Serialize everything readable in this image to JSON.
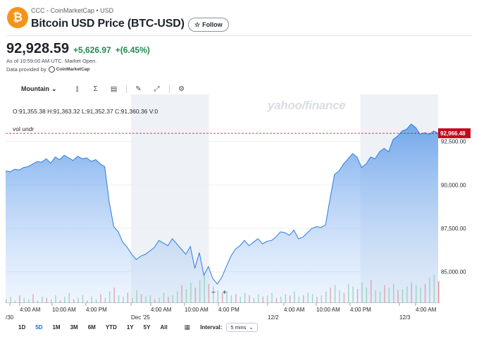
{
  "header": {
    "logo_glyph": "₿",
    "source_line": "CCC - CoinMarketCap • USD",
    "title": "Bitcoin USD Price (BTC-USD)",
    "follow_label": "Follow",
    "follow_icon": "star-outline-icon"
  },
  "quote": {
    "price": "92,928.59",
    "change": "+5,626.97",
    "change_pct": "+(6.45%)",
    "as_of": "As of 10:59:00 AM UTC. Market Open.",
    "provided_by": "Data provided by",
    "provider_logo_text": "CoinMarketCap",
    "up_color": "#1e8b51"
  },
  "toolbar": {
    "chart_type": "Mountain",
    "icons": [
      "compare-icon",
      "indicators-icon",
      "events-icon",
      "draw-icon",
      "fullscreen-icon",
      "settings-icon"
    ]
  },
  "chart_overlay": {
    "ohlc": "O:91,355.38  H:91,363.32  L:91,352.37  C:91,360.36  V:0",
    "vol_label": "vol undr",
    "watermark": "yahoo/finance",
    "zoom_out": "−",
    "zoom_in": "+"
  },
  "chart_data": {
    "type": "area",
    "y_ticks": [
      "92,500.00",
      "90,000.00",
      "87,500.00",
      "85,000.00"
    ],
    "y_tick_values": [
      92500,
      90000,
      87500,
      85000
    ],
    "ylim": [
      83200,
      95200
    ],
    "last_price_label": "92,966.48",
    "last_price_value": 92966.48,
    "last_price_color": "#c20a1f",
    "x_tick_labels": [
      "/30",
      "4:00 AM",
      "10:00 AM",
      "4:00 PM",
      "Dec '25",
      "4:00 AM",
      "10:00 AM",
      "4:00 PM",
      "12/2",
      "4:00 AM",
      "10:00 AM",
      "4:00 PM",
      "12/3",
      "4:00 AM"
    ],
    "series": [
      {
        "values": [
          90800,
          90750,
          90900,
          90850,
          91000,
          91050,
          91200,
          91350,
          91300,
          91500,
          91250,
          91600,
          91450,
          91700,
          91550,
          91400,
          91650,
          91500,
          91550,
          91350,
          91450,
          91200,
          91050,
          89000,
          87600,
          87300,
          86700,
          86400,
          86000,
          85700,
          85900,
          86000,
          86200,
          86400,
          86800,
          86650,
          86500,
          86900,
          86600,
          86300,
          86000,
          86450,
          85200,
          86100,
          84800,
          85300,
          84600,
          84300,
          84700,
          85300,
          85900,
          86300,
          86500,
          86800,
          86500,
          86700,
          86900,
          86600,
          86750,
          86800,
          87000,
          87300,
          87250,
          87100,
          87400,
          86900,
          87000,
          87250,
          87500,
          87600,
          87550,
          87700,
          89200,
          90600,
          90800,
          91200,
          91500,
          91800,
          91600,
          91000,
          91200,
          91600,
          91500,
          91900,
          92100,
          91900,
          92600,
          92800,
          93100,
          93200,
          93500,
          93300,
          92900,
          93000,
          92900,
          93100,
          92966
        ],
        "color": "#2f7de1"
      }
    ],
    "volume_bars": [
      3,
      5,
      2,
      6,
      4,
      3,
      7,
      2,
      5,
      4,
      3,
      6,
      2,
      5,
      8,
      3,
      4,
      6,
      2,
      5,
      3,
      7,
      4,
      9,
      12,
      6,
      5,
      8,
      4,
      10,
      7,
      5,
      6,
      3,
      4,
      8,
      5,
      6,
      9,
      14,
      11,
      16,
      12,
      18,
      22,
      15,
      13,
      10,
      8,
      9,
      6,
      7,
      5,
      8,
      6,
      4,
      7,
      5,
      6,
      8,
      4,
      5,
      7,
      6,
      9,
      5,
      6,
      8,
      7,
      5,
      6,
      9,
      12,
      14,
      10,
      8,
      15,
      13,
      11,
      16,
      12,
      18,
      10,
      9,
      14,
      12,
      15,
      10,
      11,
      13,
      16,
      14,
      12,
      15,
      20,
      22,
      17
    ],
    "shaded_sessions": [
      [
        0.29,
        0.47
      ],
      [
        0.82,
        1.0
      ]
    ]
  },
  "range": {
    "buttons": [
      "1D",
      "5D",
      "1M",
      "3M",
      "6M",
      "YTD",
      "1Y",
      "5Y",
      "All"
    ],
    "active": "5D",
    "calendar_icon": "calendar-icon",
    "interval_label": "Interval:",
    "interval_value": "5 mins"
  }
}
